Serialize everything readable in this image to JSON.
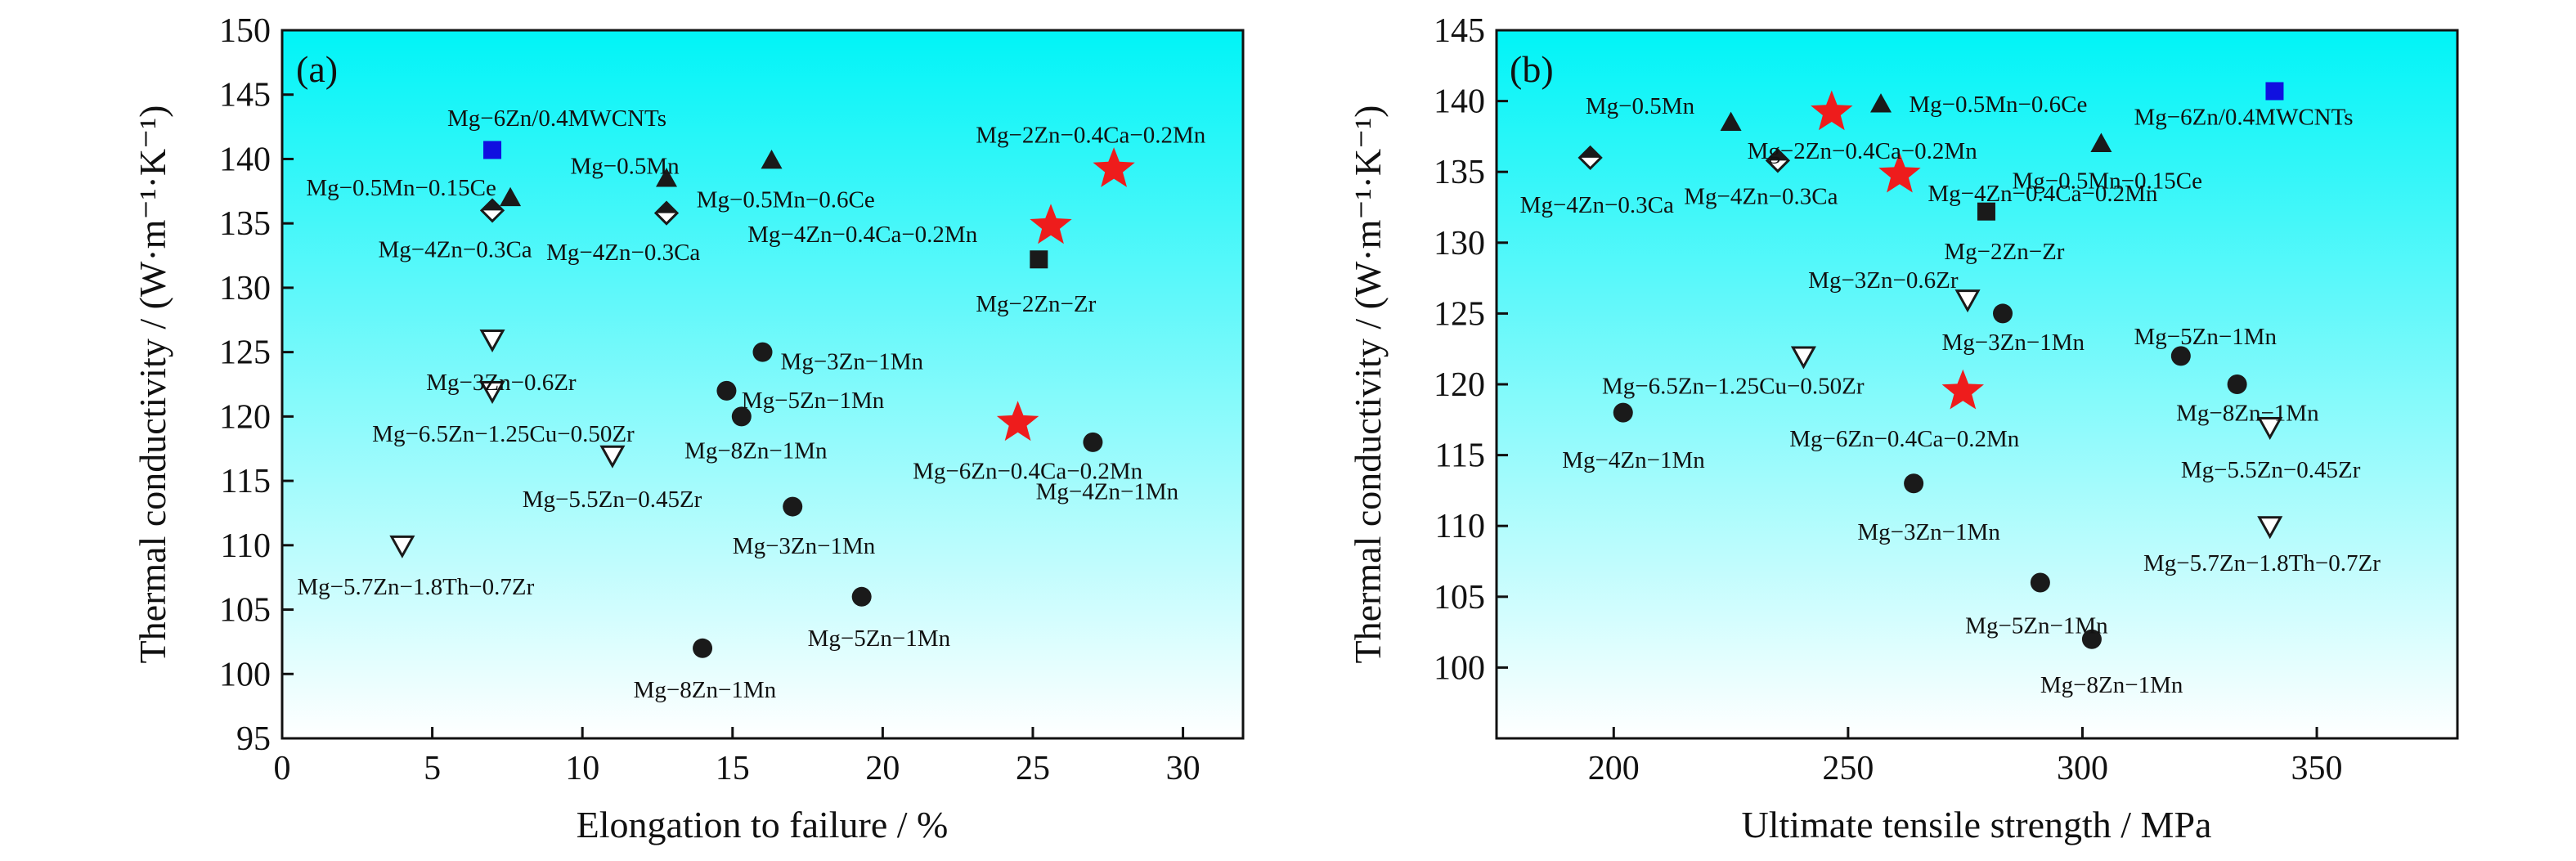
{
  "chart_data": [
    {
      "type": "scatter",
      "panel_label": "(a)",
      "xlabel": "Elongation to failure / %",
      "ylabel": "Thermal conductivity / (W·m⁻¹·K⁻¹)",
      "xlim": [
        0,
        32
      ],
      "ylim": [
        95,
        150
      ],
      "xticks": [
        0,
        5,
        10,
        15,
        20,
        25,
        30
      ],
      "yticks": [
        95,
        100,
        105,
        110,
        115,
        120,
        125,
        130,
        135,
        140,
        145,
        150
      ],
      "grid": false,
      "background": {
        "top": "#00F4F7",
        "bottom": "#FFFFFF"
      },
      "points": [
        {
          "x": 7.0,
          "y": 140.7,
          "marker": "square",
          "color": "#1010E0",
          "label": "Mg−6Zn/0.4MWCNTs",
          "label_dx": -1.5,
          "label_dy": 2.5
        },
        {
          "x": 7.6,
          "y": 137.0,
          "marker": "triangle",
          "color": "#1a1a1a",
          "label": "Mg−0.5Mn−0.15Ce",
          "label_dx": -6.8,
          "label_dy": 0.8
        },
        {
          "x": 7.0,
          "y": 136.0,
          "marker": "diamond",
          "color": "#1a1a1a",
          "label": "Mg−4Zn−0.3Ca",
          "label_dx": -3.8,
          "label_dy": -3.0
        },
        {
          "x": 12.8,
          "y": 138.5,
          "marker": "triangle",
          "color": "#1a1a1a",
          "label": "Mg−0.5Mn",
          "label_dx": -3.2,
          "label_dy": 1.0
        },
        {
          "x": 12.8,
          "y": 135.8,
          "marker": "diamond",
          "color": "#1a1a1a",
          "label": "Mg−4Zn−0.3Ca",
          "label_dx": -4.0,
          "label_dy": -3.0
        },
        {
          "x": 16.3,
          "y": 139.9,
          "marker": "triangle",
          "color": "#1a1a1a",
          "label": "Mg−0.5Mn−0.6Ce",
          "label_dx": -2.5,
          "label_dy": -3.0
        },
        {
          "x": 27.7,
          "y": 139.2,
          "marker": "star",
          "color": "#EE1C1C",
          "label": "Mg−2Zn−0.4Ca−0.2Mn",
          "label_dx": -4.6,
          "label_dy": 2.7
        },
        {
          "x": 25.6,
          "y": 134.8,
          "marker": "star",
          "color": "#EE1C1C",
          "label": "Mg−4Zn−0.4Ca−0.2Mn",
          "label_dx": -10.1,
          "label_dy": -0.6
        },
        {
          "x": 25.2,
          "y": 132.2,
          "marker": "square",
          "color": "#1a1a1a",
          "label": "Mg−2Zn−Zr",
          "label_dx": -2.1,
          "label_dy": -3.4
        },
        {
          "x": 7.0,
          "y": 126.0,
          "marker": "triangle-down",
          "color": "#1a1a1a",
          "label": "Mg−3Zn−0.6Zr",
          "label_dx": -2.2,
          "label_dy": -3.3
        },
        {
          "x": 7.0,
          "y": 122.0,
          "marker": "triangle-down",
          "color": "#1a1a1a",
          "label": "Mg−6.5Zn−1.25Cu−0.50Zr",
          "label_dx": -4.0,
          "label_dy": -3.3
        },
        {
          "x": 11.0,
          "y": 117.0,
          "marker": "triangle-down",
          "color": "#1a1a1a",
          "label": "Mg−5.5Zn−0.45Zr",
          "label_dx": -3.0,
          "label_dy": -3.4
        },
        {
          "x": 4.0,
          "y": 110.0,
          "marker": "triangle-down",
          "color": "#1a1a1a",
          "label": "Mg−5.7Zn−1.8Th−0.7Zr",
          "label_dx": -3.5,
          "label_dy": -3.2
        },
        {
          "x": 16.0,
          "y": 125.0,
          "marker": "circle",
          "color": "#1a1a1a",
          "label": "Mg−3Zn−1Mn",
          "label_dx": 0.6,
          "label_dy": -0.7
        },
        {
          "x": 14.8,
          "y": 122.0,
          "marker": "circle",
          "color": "#1a1a1a",
          "label": "Mg−5Zn−1Mn",
          "label_dx": 0.5,
          "label_dy": -0.7
        },
        {
          "x": 15.3,
          "y": 120.0,
          "marker": "circle",
          "color": "#1a1a1a",
          "label": "Mg−8Zn−1Mn",
          "label_dx": -1.9,
          "label_dy": -2.6
        },
        {
          "x": 17.0,
          "y": 113.0,
          "marker": "circle",
          "color": "#1a1a1a",
          "label": "Mg−3Zn−1Mn",
          "label_dx": -2.0,
          "label_dy": -3.0
        },
        {
          "x": 19.3,
          "y": 106.0,
          "marker": "circle",
          "color": "#1a1a1a",
          "label": "Mg−5Zn−1Mn",
          "label_dx": -1.8,
          "label_dy": -3.2
        },
        {
          "x": 14.0,
          "y": 102.0,
          "marker": "circle",
          "color": "#1a1a1a",
          "label": "Mg−8Zn−1Mn",
          "label_dx": -2.3,
          "label_dy": -3.2
        },
        {
          "x": 24.5,
          "y": 119.5,
          "marker": "star",
          "color": "#EE1C1C",
          "label": "Mg−6Zn−0.4Ca−0.2Mn",
          "label_dx": -3.5,
          "label_dy": -3.7
        },
        {
          "x": 27.0,
          "y": 118.0,
          "marker": "circle",
          "color": "#1a1a1a",
          "label": "Mg−4Zn−1Mn",
          "label_dx": -1.9,
          "label_dy": -3.8
        }
      ]
    },
    {
      "type": "scatter",
      "panel_label": "(b)",
      "xlabel": "Ultimate tensile strength / MPa",
      "ylabel": "Thermal conductivity / (W·m⁻¹·K⁻¹)",
      "xlim": [
        175,
        380
      ],
      "ylim": [
        95,
        145
      ],
      "xticks": [
        200,
        250,
        300,
        350
      ],
      "yticks": [
        100,
        105,
        110,
        115,
        120,
        125,
        130,
        135,
        140,
        145
      ],
      "grid": false,
      "background": {
        "top": "#00F4F7",
        "bottom": "#FFFFFF"
      },
      "points": [
        {
          "x": 225,
          "y": 138.5,
          "marker": "triangle",
          "color": "#1a1a1a",
          "label": "Mg−0.5Mn",
          "label_dx": -31,
          "label_dy": 1.2
        },
        {
          "x": 246.5,
          "y": 139.2,
          "marker": "star",
          "color": "#EE1C1C",
          "label": "Mg−2Zn−0.4Ca−0.2Mn",
          "label_dx": -18,
          "label_dy": -2.7
        },
        {
          "x": 257,
          "y": 139.8,
          "marker": "triangle",
          "color": "#1a1a1a",
          "label": "Mg−0.5Mn−0.6Ce",
          "label_dx": 6,
          "label_dy": 0.0
        },
        {
          "x": 341,
          "y": 140.7,
          "marker": "square",
          "color": "#1010E0",
          "label": "Mg−6Zn/0.4MWCNTs",
          "label_dx": -30,
          "label_dy": -1.8
        },
        {
          "x": 304,
          "y": 137.0,
          "marker": "triangle",
          "color": "#1a1a1a",
          "label": "Mg−0.5Mn−0.15Ce",
          "label_dx": -19,
          "label_dy": -2.6
        },
        {
          "x": 195,
          "y": 136.0,
          "marker": "diamond",
          "color": "#1a1a1a",
          "label": "Mg−4Zn−0.3Ca",
          "label_dx": -15,
          "label_dy": -3.3
        },
        {
          "x": 235,
          "y": 135.8,
          "marker": "diamond",
          "color": "#1a1a1a",
          "label": "Mg−4Zn−0.3Ca",
          "label_dx": -20,
          "label_dy": -2.5
        },
        {
          "x": 261,
          "y": 134.8,
          "marker": "star",
          "color": "#EE1C1C",
          "label": "Mg−4Zn−0.4Ca−0.2Mn",
          "label_dx": 6,
          "label_dy": -1.3
        },
        {
          "x": 279.5,
          "y": 132.2,
          "marker": "square",
          "color": "#1a1a1a",
          "label": "Mg−2Zn−Zr",
          "label_dx": -9,
          "label_dy": -2.8
        },
        {
          "x": 275.5,
          "y": 126.0,
          "marker": "triangle-down",
          "color": "#1a1a1a",
          "label": "Mg−3Zn−0.6Zr",
          "label_dx": -34,
          "label_dy": 1.4
        },
        {
          "x": 283,
          "y": 125.0,
          "marker": "circle",
          "color": "#1a1a1a",
          "label": "Mg−3Zn−1Mn",
          "label_dx": -13,
          "label_dy": -2.0
        },
        {
          "x": 240.5,
          "y": 122.0,
          "marker": "triangle-down",
          "color": "#1a1a1a",
          "label": "Mg−6.5Zn−1.25Cu−0.50Zr",
          "label_dx": -43,
          "label_dy": -2.1
        },
        {
          "x": 274.5,
          "y": 119.5,
          "marker": "star",
          "color": "#EE1C1C",
          "label": "Mg−6Zn−0.4Ca−0.2Mn",
          "label_dx": -37,
          "label_dy": -3.3
        },
        {
          "x": 202,
          "y": 118.0,
          "marker": "circle",
          "color": "#1a1a1a",
          "label": "Mg−4Zn−1Mn",
          "label_dx": -13,
          "label_dy": -3.3
        },
        {
          "x": 264,
          "y": 113.0,
          "marker": "circle",
          "color": "#1a1a1a",
          "label": "Mg−3Zn−1Mn",
          "label_dx": -12,
          "label_dy": -3.4
        },
        {
          "x": 321,
          "y": 122.0,
          "marker": "circle",
          "color": "#1a1a1a",
          "label": "Mg−5Zn−1Mn",
          "label_dx": -10,
          "label_dy": 1.4
        },
        {
          "x": 333,
          "y": 120.0,
          "marker": "circle",
          "color": "#1a1a1a",
          "label": "Mg−8Zn−1Mn",
          "label_dx": -13,
          "label_dy": -2.0
        },
        {
          "x": 340,
          "y": 117.0,
          "marker": "triangle-down",
          "color": "#1a1a1a",
          "label": "Mg−5.5Zn−0.45Zr",
          "label_dx": -19,
          "label_dy": -3.0
        },
        {
          "x": 340,
          "y": 110.0,
          "marker": "triangle-down",
          "color": "#1a1a1a",
          "label": "Mg−5.7Zn−1.8Th−0.7Zr",
          "label_dx": -27,
          "label_dy": -2.6
        },
        {
          "x": 291,
          "y": 106.0,
          "marker": "circle",
          "color": "#1a1a1a",
          "label": "Mg−5Zn−1Mn",
          "label_dx": -16,
          "label_dy": -3.0
        },
        {
          "x": 302,
          "y": 102.0,
          "marker": "circle",
          "color": "#1a1a1a",
          "label": "Mg−8Zn−1Mn",
          "label_dx": -11,
          "label_dy": -3.2
        }
      ]
    }
  ]
}
